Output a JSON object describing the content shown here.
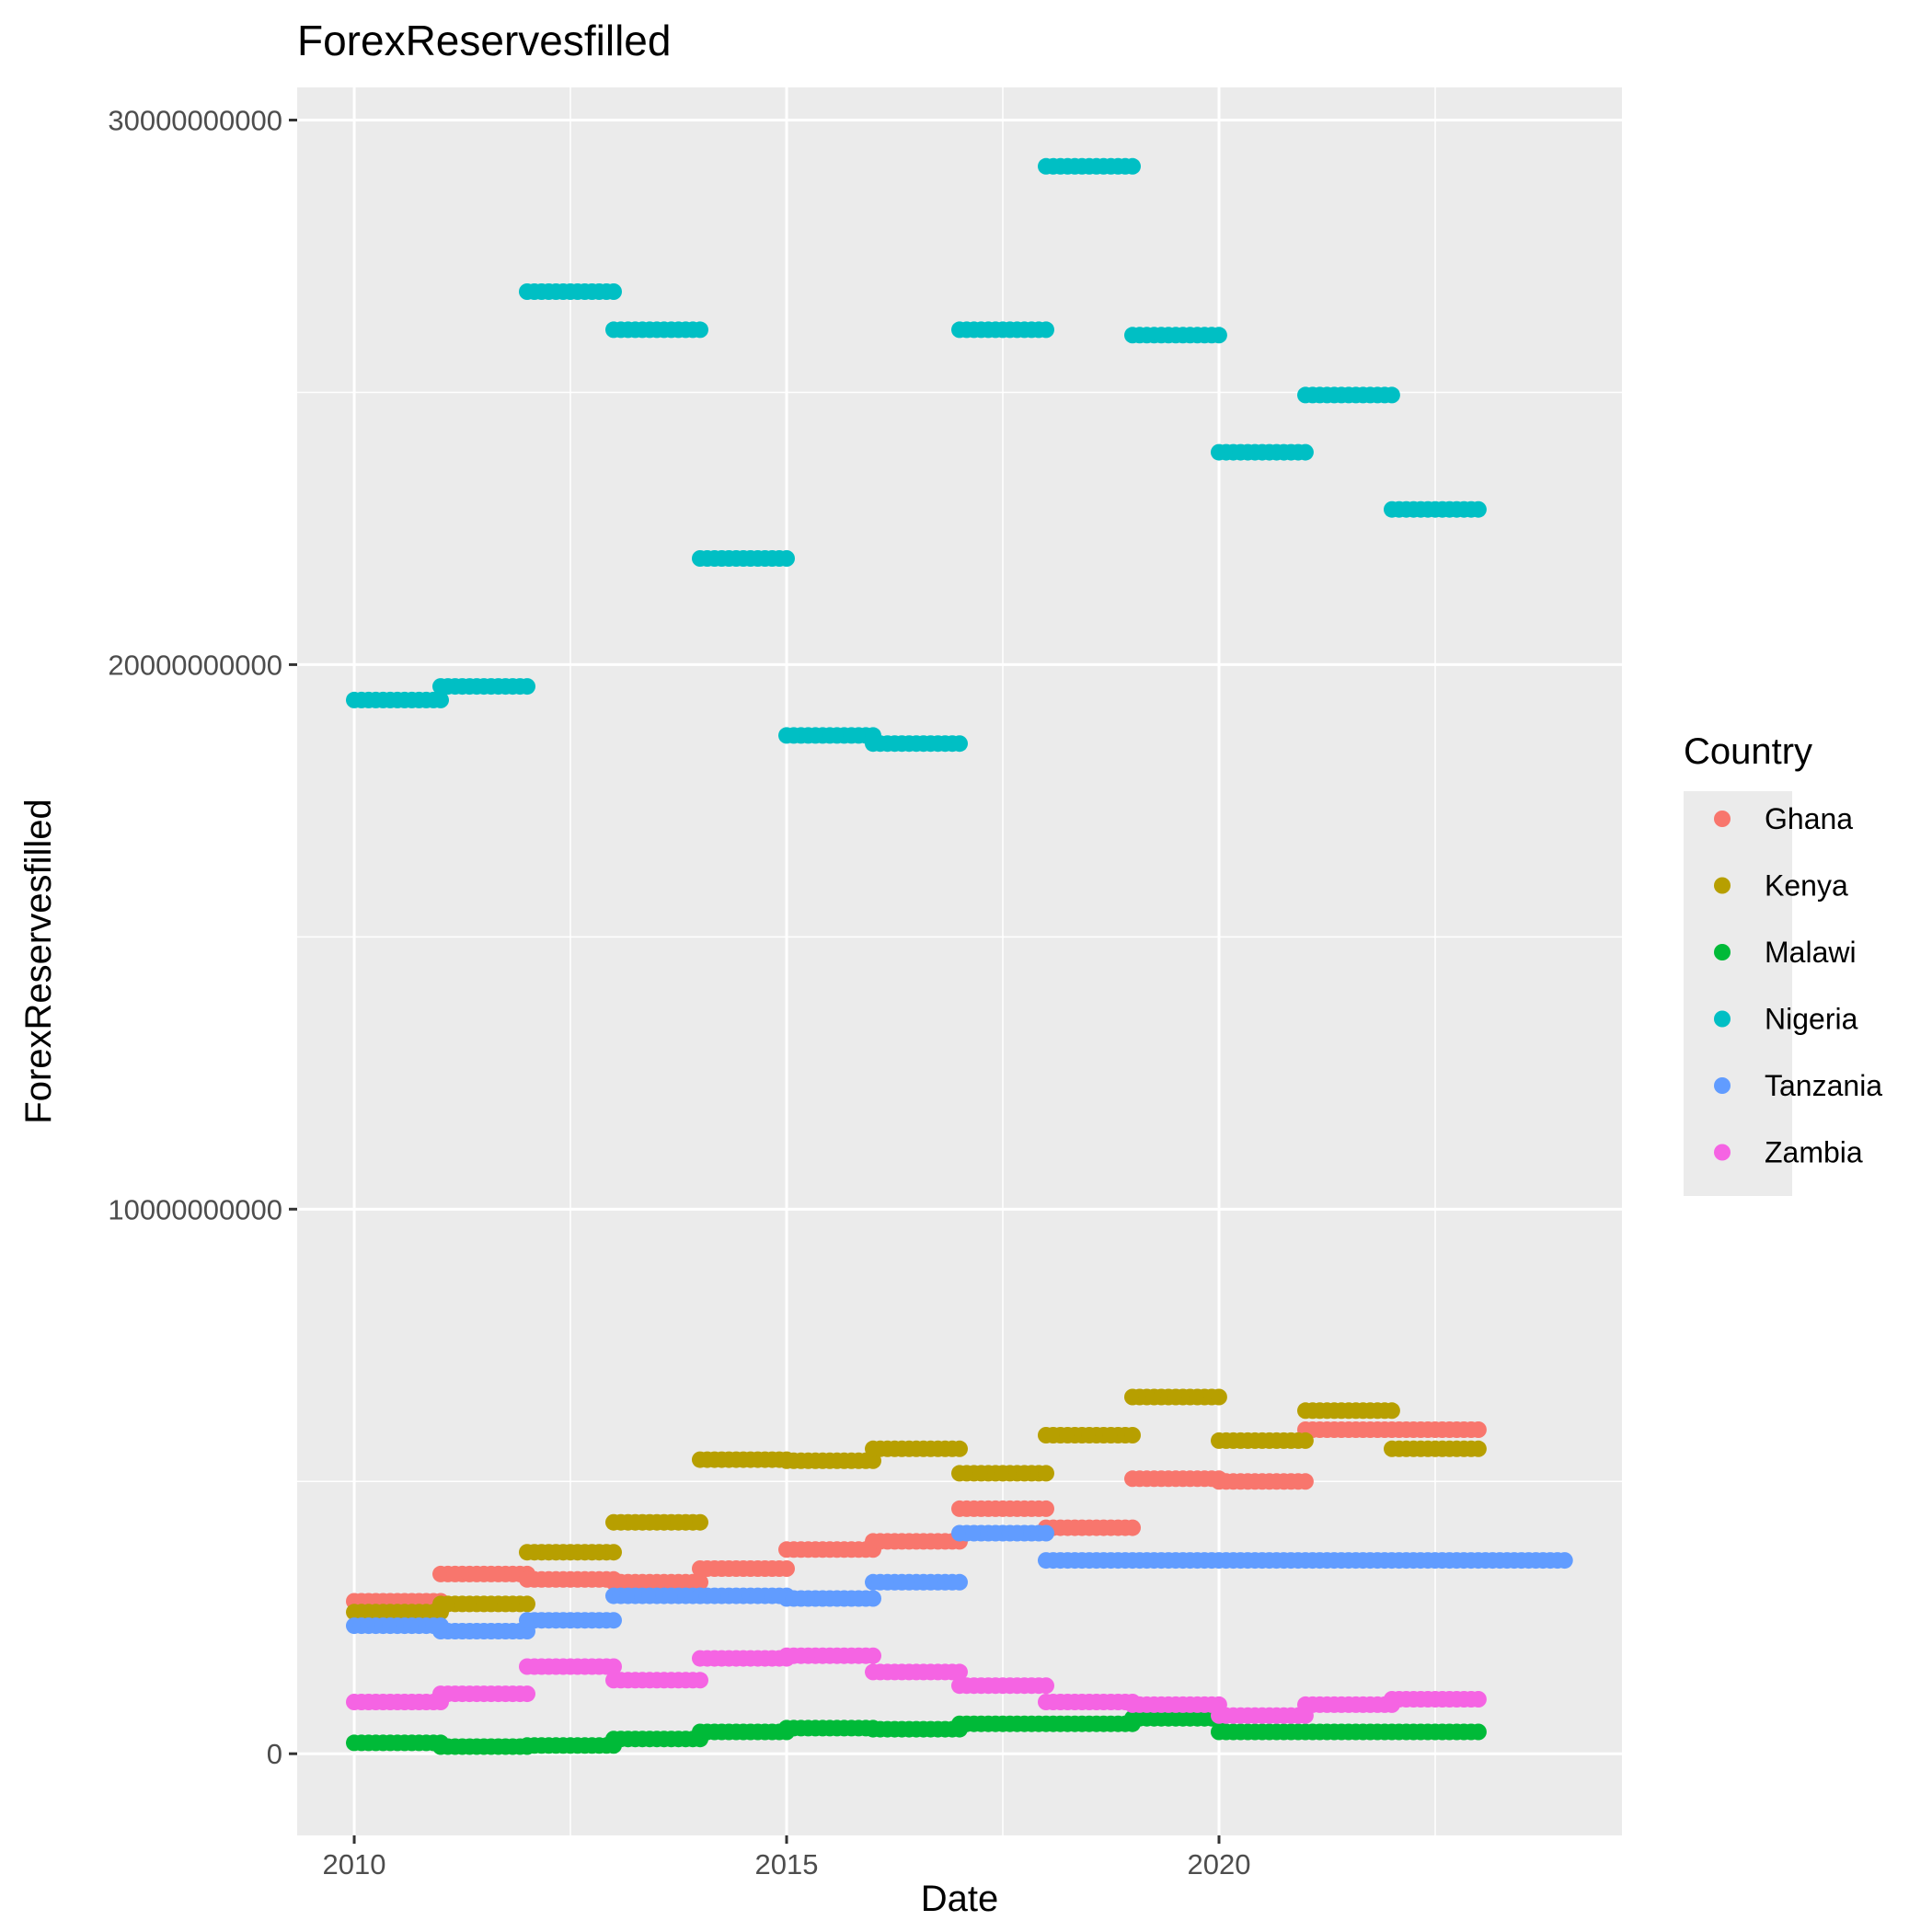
{
  "chart_data": {
    "type": "scatter",
    "title": "ForexReservesfilled",
    "xlabel": "Date",
    "ylabel": "ForexReservesfilled",
    "xlim": [
      2009.34,
      2024.66
    ],
    "ylim": [
      -1500000000,
      30600000000
    ],
    "x_ticks": [
      2010,
      2015,
      2020
    ],
    "x_tick_labels": [
      "2010",
      "2015",
      "2020"
    ],
    "y_ticks": [
      0,
      10000000000,
      20000000000,
      30000000000
    ],
    "y_tick_labels": [
      "0",
      "10000000000",
      "20000000000",
      "30000000000"
    ],
    "x_minor_ticks": [
      2012.5,
      2017.5,
      2022.5
    ],
    "y_minor_ticks": [
      5000000000,
      15000000000,
      25000000000
    ],
    "grid": true,
    "panel_background": "#EBEBEB",
    "legend": {
      "title": "Country",
      "position": "right"
    },
    "point_step_years": 0.0833,
    "series": [
      {
        "name": "Ghana",
        "color": "#F8766D",
        "segments": [
          {
            "start": 2010,
            "end": 2011,
            "value": 2800000000
          },
          {
            "start": 2011,
            "end": 2012,
            "value": 3300000000
          },
          {
            "start": 2012,
            "end": 2013,
            "value": 3200000000
          },
          {
            "start": 2013,
            "end": 2014,
            "value": 3150000000
          },
          {
            "start": 2014,
            "end": 2015,
            "value": 3400000000
          },
          {
            "start": 2015,
            "end": 2016,
            "value": 3750000000
          },
          {
            "start": 2016,
            "end": 2017,
            "value": 3900000000
          },
          {
            "start": 2017,
            "end": 2018,
            "value": 4500000000
          },
          {
            "start": 2018,
            "end": 2019,
            "value": 4150000000
          },
          {
            "start": 2019,
            "end": 2020,
            "value": 5050000000
          },
          {
            "start": 2020,
            "end": 2021,
            "value": 5000000000
          },
          {
            "start": 2021,
            "end": 2023,
            "value": 5950000000
          }
        ]
      },
      {
        "name": "Kenya",
        "color": "#B79F00",
        "segments": [
          {
            "start": 2010,
            "end": 2011,
            "value": 2600000000
          },
          {
            "start": 2011,
            "end": 2012,
            "value": 2750000000
          },
          {
            "start": 2012,
            "end": 2013,
            "value": 3700000000
          },
          {
            "start": 2013,
            "end": 2014,
            "value": 4250000000
          },
          {
            "start": 2014,
            "end": 2015,
            "value": 5400000000
          },
          {
            "start": 2015,
            "end": 2016,
            "value": 5380000000
          },
          {
            "start": 2016,
            "end": 2017,
            "value": 5600000000
          },
          {
            "start": 2017,
            "end": 2018,
            "value": 5150000000
          },
          {
            "start": 2018,
            "end": 2019,
            "value": 5850000000
          },
          {
            "start": 2019,
            "end": 2020,
            "value": 6550000000
          },
          {
            "start": 2020,
            "end": 2021,
            "value": 5750000000
          },
          {
            "start": 2021,
            "end": 2022,
            "value": 6300000000
          },
          {
            "start": 2022,
            "end": 2023,
            "value": 5600000000
          }
        ]
      },
      {
        "name": "Malawi",
        "color": "#00BA38",
        "segments": [
          {
            "start": 2010,
            "end": 2011,
            "value": 200000000
          },
          {
            "start": 2011,
            "end": 2012,
            "value": 130000000
          },
          {
            "start": 2012,
            "end": 2013,
            "value": 150000000
          },
          {
            "start": 2013,
            "end": 2014,
            "value": 270000000
          },
          {
            "start": 2014,
            "end": 2015,
            "value": 400000000
          },
          {
            "start": 2015,
            "end": 2016,
            "value": 470000000
          },
          {
            "start": 2016,
            "end": 2017,
            "value": 450000000
          },
          {
            "start": 2017,
            "end": 2019,
            "value": 550000000
          },
          {
            "start": 2019,
            "end": 2020,
            "value": 650000000
          },
          {
            "start": 2020,
            "end": 2023,
            "value": 400000000
          }
        ]
      },
      {
        "name": "Nigeria",
        "color": "#00BFC4",
        "segments": [
          {
            "start": 2010,
            "end": 2011,
            "value": 19350000000
          },
          {
            "start": 2011,
            "end": 2012,
            "value": 19600000000
          },
          {
            "start": 2012,
            "end": 2013,
            "value": 26850000000
          },
          {
            "start": 2013,
            "end": 2014,
            "value": 26150000000
          },
          {
            "start": 2014,
            "end": 2015,
            "value": 21950000000
          },
          {
            "start": 2015,
            "end": 2016,
            "value": 18700000000
          },
          {
            "start": 2016,
            "end": 2017,
            "value": 18550000000
          },
          {
            "start": 2017,
            "end": 2018,
            "value": 26150000000
          },
          {
            "start": 2018,
            "end": 2019,
            "value": 29150000000
          },
          {
            "start": 2019,
            "end": 2020,
            "value": 26050000000
          },
          {
            "start": 2020,
            "end": 2021,
            "value": 23900000000
          },
          {
            "start": 2021,
            "end": 2022,
            "value": 24950000000
          },
          {
            "start": 2022,
            "end": 2023,
            "value": 22850000000
          }
        ]
      },
      {
        "name": "Tanzania",
        "color": "#619CFF",
        "segments": [
          {
            "start": 2010,
            "end": 2011,
            "value": 2350000000
          },
          {
            "start": 2011,
            "end": 2012,
            "value": 2250000000
          },
          {
            "start": 2012,
            "end": 2013,
            "value": 2450000000
          },
          {
            "start": 2013,
            "end": 2014,
            "value": 2900000000
          },
          {
            "start": 2014,
            "end": 2015,
            "value": 2900000000
          },
          {
            "start": 2015,
            "end": 2016,
            "value": 2850000000
          },
          {
            "start": 2016,
            "end": 2017,
            "value": 3150000000
          },
          {
            "start": 2017,
            "end": 2018,
            "value": 4050000000
          },
          {
            "start": 2018,
            "end": 2024,
            "value": 3550000000
          }
        ]
      },
      {
        "name": "Zambia",
        "color": "#F564E3",
        "segments": [
          {
            "start": 2010,
            "end": 2011,
            "value": 950000000
          },
          {
            "start": 2011,
            "end": 2012,
            "value": 1100000000
          },
          {
            "start": 2012,
            "end": 2013,
            "value": 1600000000
          },
          {
            "start": 2013,
            "end": 2014,
            "value": 1350000000
          },
          {
            "start": 2014,
            "end": 2015,
            "value": 1750000000
          },
          {
            "start": 2015,
            "end": 2016,
            "value": 1800000000
          },
          {
            "start": 2016,
            "end": 2017,
            "value": 1500000000
          },
          {
            "start": 2017,
            "end": 2018,
            "value": 1250000000
          },
          {
            "start": 2018,
            "end": 2019,
            "value": 950000000
          },
          {
            "start": 2019,
            "end": 2020,
            "value": 900000000
          },
          {
            "start": 2020,
            "end": 2021,
            "value": 700000000
          },
          {
            "start": 2021,
            "end": 2022,
            "value": 900000000
          },
          {
            "start": 2022,
            "end": 2023,
            "value": 1000000000
          }
        ]
      }
    ]
  }
}
